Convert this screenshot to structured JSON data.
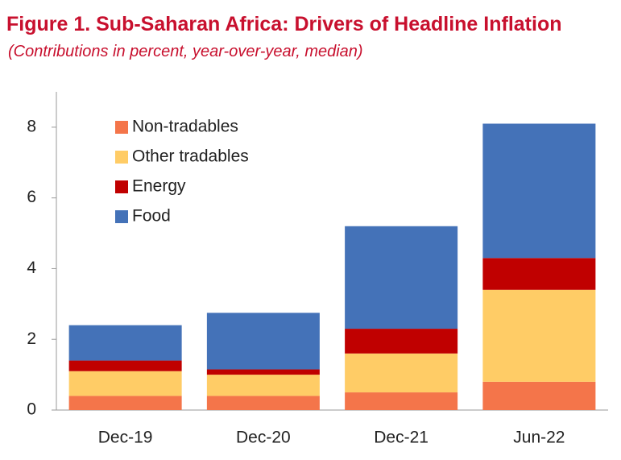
{
  "chart_data": {
    "type": "stacked_bar",
    "title": "Figure 1. Sub-Saharan Africa: Drivers of Headline Inflation",
    "subtitle": "(Contributions in percent, year-over-year, median)",
    "categories": [
      "Dec-19",
      "Dec-20",
      "Dec-21",
      "Jun-22"
    ],
    "series": [
      {
        "name": "Non-tradables",
        "color": "#f4754a",
        "values": [
          0.4,
          0.4,
          0.5,
          0.8
        ]
      },
      {
        "name": "Other tradables",
        "color": "#ffcc66",
        "values": [
          0.7,
          0.6,
          1.1,
          2.6
        ]
      },
      {
        "name": "Energy",
        "color": "#c00000",
        "values": [
          0.3,
          0.15,
          0.7,
          0.9
        ]
      },
      {
        "name": "Food",
        "color": "#4472b8",
        "values": [
          1.0,
          1.6,
          2.9,
          3.8
        ]
      }
    ],
    "ylim": [
      0,
      9
    ],
    "yticks": [
      0,
      2,
      4,
      6,
      8
    ],
    "legend": "upper-left"
  }
}
